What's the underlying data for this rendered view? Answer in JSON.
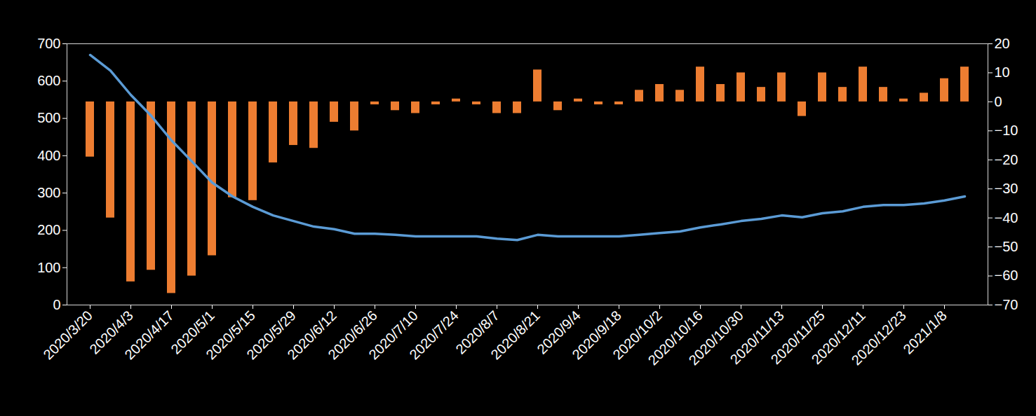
{
  "chart_data": {
    "type": "bar",
    "categories": [
      "2020/3/20",
      null,
      "2020/4/3",
      null,
      "2020/4/17",
      null,
      "2020/5/1",
      null,
      "2020/5/15",
      null,
      "2020/5/29",
      null,
      "2020/6/12",
      null,
      "2020/6/26",
      null,
      "2020/7/10",
      null,
      "2020/7/24",
      null,
      "2020/8/7",
      null,
      "2020/8/21",
      null,
      "2020/9/4",
      null,
      "2020/9/18",
      null,
      "2020/10/2",
      null,
      "2020/10/16",
      null,
      "2020/10/30",
      null,
      "2020/11/13",
      null,
      "2020/11/25",
      null,
      "2020/12/11",
      null,
      "2020/12/23",
      null,
      "2021/1/8",
      null
    ],
    "series": [
      {
        "type": "bar",
        "axis": "y2",
        "color": "#ED7D31",
        "values": [
          -19,
          -40,
          -62,
          -58,
          -66,
          -60,
          -53,
          -33,
          -34,
          -21,
          -15,
          -16,
          -7,
          -10,
          -1,
          -3,
          -4,
          -1,
          1,
          -1,
          -4,
          -4,
          11,
          -3,
          1,
          -1,
          -1,
          4,
          6,
          4,
          12,
          6,
          10,
          5,
          10,
          -5,
          10,
          5,
          12,
          5,
          1,
          3,
          8,
          12
        ]
      },
      {
        "type": "line",
        "color": "#5B9BD5",
        "values": [
          670,
          628,
          563,
          507,
          441,
          385,
          328,
          291,
          263,
          240,
          225,
          210,
          203,
          191,
          191,
          188,
          184,
          184,
          184,
          184,
          178,
          174,
          188,
          184,
          184,
          184,
          184,
          188,
          193,
          197,
          208,
          216,
          225,
          231,
          240,
          235,
          246,
          251,
          263,
          268,
          268,
          272,
          280,
          291
        ]
      }
    ],
    "ylim": [
      0,
      700
    ],
    "yticks": [
      0,
      100,
      200,
      300,
      400,
      500,
      600,
      700
    ],
    "y2lim": [
      -70,
      20
    ],
    "y2ticks": [
      -70,
      -60,
      -50,
      -40,
      -30,
      -20,
      -10,
      0,
      10,
      20
    ],
    "grid": false
  }
}
